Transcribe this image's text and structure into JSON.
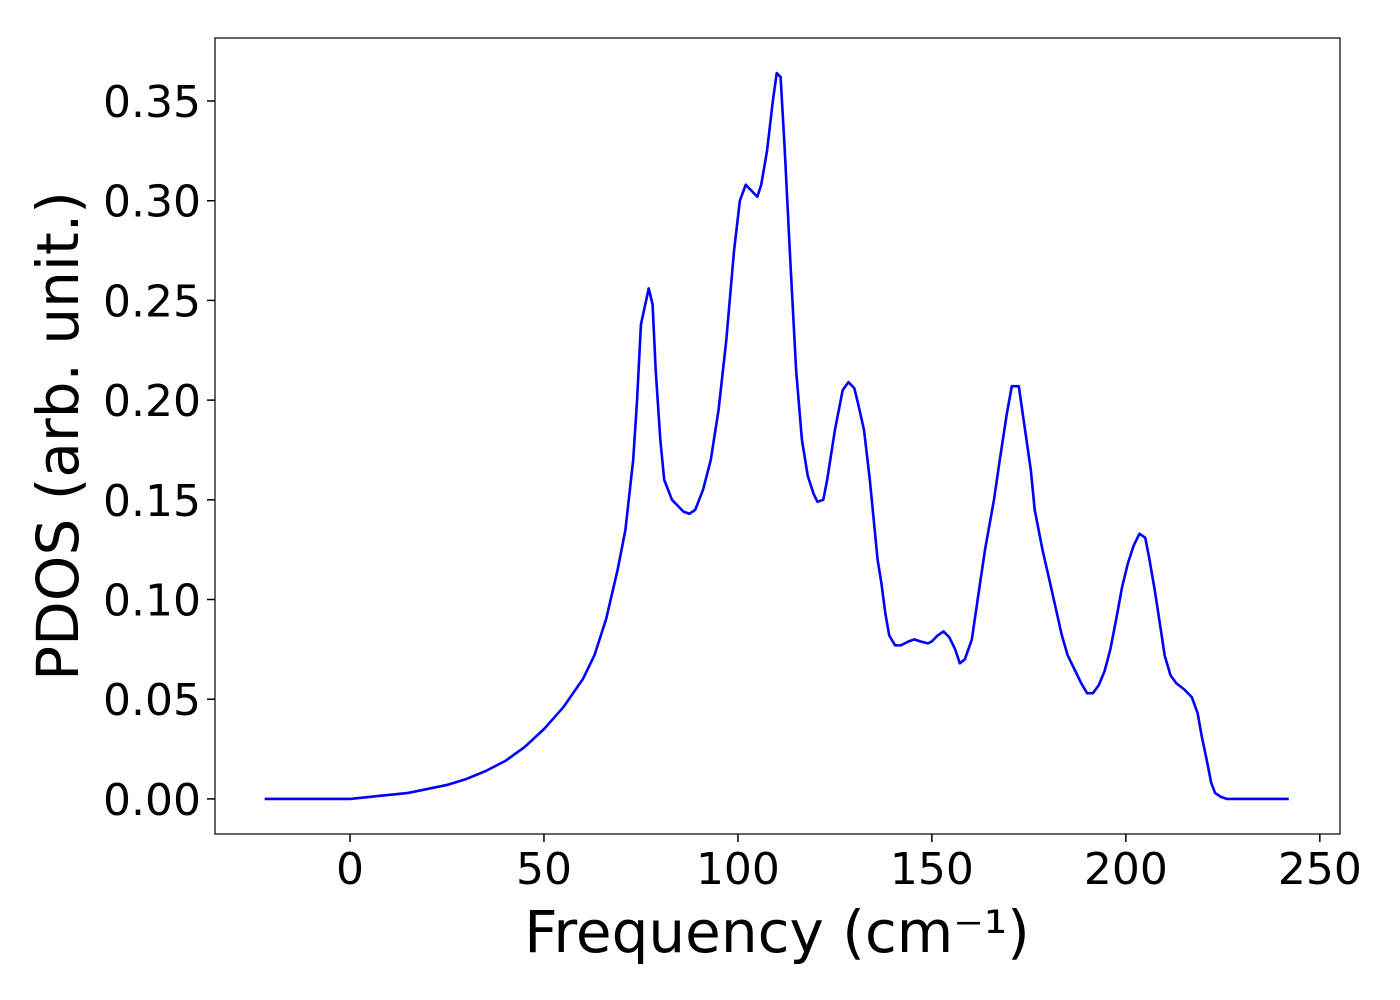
{
  "chart_data": {
    "type": "line",
    "x_label": "Frequency (cm⁻¹)",
    "y_label": "PDOS (arb. unit.)",
    "series": [
      {
        "color": "#0000ff",
        "x": [
          -22,
          -10,
          0,
          5,
          10,
          15,
          20,
          25,
          30,
          35,
          40,
          45,
          50,
          55,
          60,
          63,
          66,
          69,
          71,
          73,
          74,
          75,
          77,
          78,
          78.8,
          80,
          81,
          83,
          86,
          87.5,
          89,
          91,
          93,
          95,
          97,
          99,
          100.5,
          102,
          105,
          106,
          107.5,
          109,
          110,
          111,
          112,
          113.5,
          115,
          116.5,
          118,
          119.5,
          120.5,
          122,
          123,
          125,
          126,
          127,
          128.5,
          130,
          131,
          132.5,
          134,
          136,
          137,
          138,
          139,
          140.5,
          142,
          144,
          145.5,
          147,
          149,
          150,
          151.5,
          153,
          154.5,
          156,
          157.2,
          158.5,
          160.3,
          162.4,
          163.7,
          166,
          167.5,
          169.3,
          170.6,
          172.4,
          173.5,
          175.5,
          176.5,
          178.5,
          180.5,
          182,
          183.5,
          185,
          187,
          188.5,
          190,
          191.5,
          193,
          194.5,
          196,
          197.5,
          199,
          200.5,
          202,
          203.5,
          205,
          206,
          207.5,
          209,
          210,
          211.5,
          213,
          215,
          217,
          218.5,
          219.5,
          221,
          222,
          223,
          224.5,
          226,
          242
        ],
        "values": [
          0,
          0,
          0,
          0.001,
          0.002,
          0.003,
          0.005,
          0.007,
          0.01,
          0.014,
          0.019,
          0.026,
          0.035,
          0.046,
          0.06,
          0.072,
          0.09,
          0.115,
          0.135,
          0.17,
          0.2,
          0.238,
          0.256,
          0.248,
          0.215,
          0.18,
          0.16,
          0.15,
          0.144,
          0.143,
          0.145,
          0.155,
          0.17,
          0.195,
          0.23,
          0.275,
          0.3,
          0.308,
          0.302,
          0.308,
          0.325,
          0.35,
          0.364,
          0.362,
          0.328,
          0.27,
          0.215,
          0.18,
          0.162,
          0.153,
          0.149,
          0.15,
          0.16,
          0.185,
          0.195,
          0.205,
          0.209,
          0.206,
          0.198,
          0.185,
          0.16,
          0.12,
          0.108,
          0.093,
          0.082,
          0.077,
          0.077,
          0.079,
          0.08,
          0.079,
          0.078,
          0.079,
          0.082,
          0.084,
          0.081,
          0.075,
          0.068,
          0.07,
          0.08,
          0.108,
          0.125,
          0.15,
          0.17,
          0.193,
          0.207,
          0.207,
          0.192,
          0.165,
          0.145,
          0.125,
          0.108,
          0.095,
          0.082,
          0.072,
          0.064,
          0.058,
          0.053,
          0.053,
          0.057,
          0.064,
          0.075,
          0.09,
          0.106,
          0.118,
          0.127,
          0.133,
          0.131,
          0.121,
          0.104,
          0.085,
          0.072,
          0.062,
          0.058,
          0.055,
          0.051,
          0.043,
          0.032,
          0.018,
          0.008,
          0.003,
          0.001,
          0,
          0
        ]
      }
    ],
    "xlim": [
      -34.8,
      255.2
    ],
    "ylim": [
      -0.0176,
      0.3816
    ],
    "xticks": [
      0,
      50,
      100,
      150,
      200,
      250
    ],
    "yticks": [
      {
        "value": 0,
        "label": "0.00"
      },
      0.05,
      {
        "value": 0.1,
        "label": "0.10"
      },
      0.15,
      {
        "value": 0.2,
        "label": "0.20"
      },
      0.25,
      {
        "value": 0.3,
        "label": "0.30"
      },
      0.35
    ],
    "grid": false
  }
}
